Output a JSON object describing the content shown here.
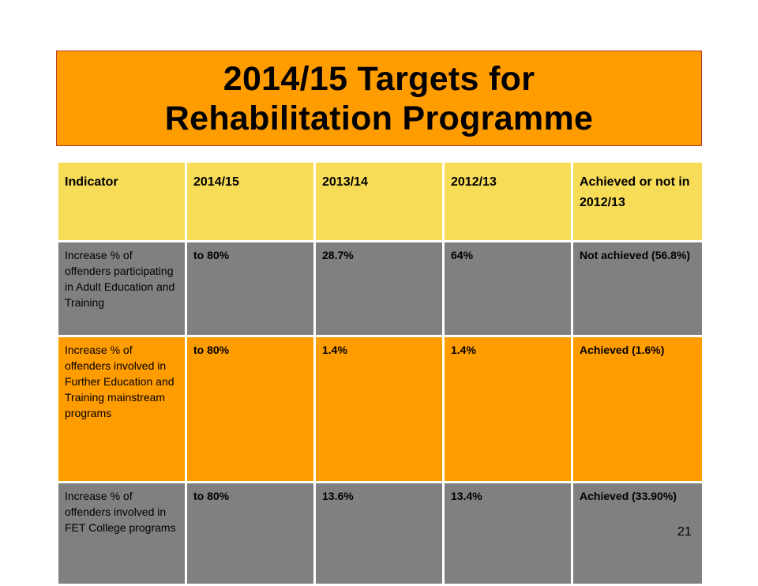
{
  "title": {
    "line1": "2014/15 Targets for",
    "line2": "Rehabilitation Programme"
  },
  "table": {
    "headers": [
      "Indicator",
      "2014/15",
      "2013/14",
      "2012/13",
      "Achieved or not in 2012/13"
    ],
    "rows": [
      [
        "Increase % of offenders participating in Adult Education and Training",
        "to 80%",
        "28.7%",
        "64%",
        "Not achieved (56.8%)"
      ],
      [
        "Increase  % of offenders involved in Further Education and Training mainstream programs",
        "to  80%",
        "1.4%",
        "1.4%",
        "Achieved (1.6%)"
      ],
      [
        "Increase % of offenders involved in FET College programs",
        "to 80%",
        "13.6%",
        "13.4%",
        "Achieved (33.90%)"
      ]
    ]
  },
  "slide_number": "21",
  "colors": {
    "orange": "#ff9c00",
    "header_yellow": "#f7dc58",
    "grey": "#808080"
  }
}
